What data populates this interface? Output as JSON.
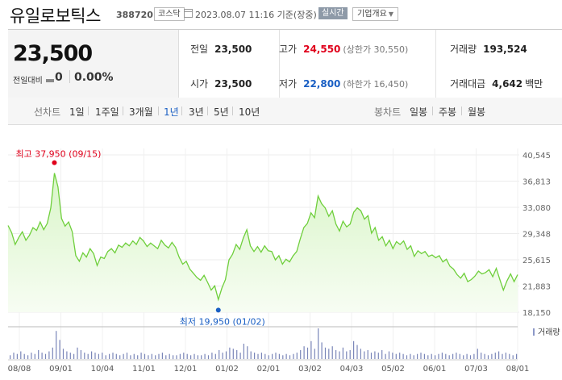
{
  "header": {
    "title": "유일로보틱스",
    "code": "388720",
    "market": "코스닥",
    "date": "2023.08.07 11:16 기준(장중)",
    "realtime": "실시간",
    "company_info": "기업개요"
  },
  "quote": {
    "price": "23,500",
    "change_label": "전일대비",
    "change": "0",
    "change_pct": "0.00%",
    "prev_close": {
      "label": "전일",
      "value": "23,500"
    },
    "high": {
      "label": "고가",
      "value": "24,550",
      "limit_label": "(상한가 30,550)"
    },
    "volume": {
      "label": "거래량",
      "value": "193,524"
    },
    "open": {
      "label": "시가",
      "value": "23,500"
    },
    "low": {
      "label": "저가",
      "value": "22,800",
      "limit_label": "(하한가 16,450)"
    },
    "amount": {
      "label": "거래대금",
      "value": "4,642",
      "unit": "백만"
    }
  },
  "chart_tabs": {
    "line_label": "선차트",
    "line_items": [
      "1일",
      "1주일",
      "3개월",
      "1년",
      "3년",
      "5년",
      "10년"
    ],
    "active": "1년",
    "candle_label": "봉차트",
    "candle_items": [
      "일봉",
      "주봉",
      "월봉"
    ]
  },
  "colors": {
    "up": "#e0001b",
    "down": "#1a5fc4",
    "line": "#6fcf3c",
    "fill_top": "#d9f5c8"
  },
  "chart_data": {
    "type": "area",
    "x_tick_labels": [
      "08/08",
      "09/01",
      "10/04",
      "11/01",
      "12/01",
      "01/02",
      "02/01",
      "03/02",
      "04/03",
      "05/02",
      "06/01",
      "07/03",
      "08/01"
    ],
    "y_tick_labels": [
      "40,545",
      "36,813",
      "33,080",
      "29,348",
      "25,615",
      "21,883",
      "18,150"
    ],
    "ylim": [
      18150,
      40545
    ],
    "max_label": "최고 37,950 (09/15)",
    "min_label": "최저 19,950 (01/02)",
    "volume_label": "거래량",
    "price_values": [
      30500,
      29500,
      27800,
      28800,
      29600,
      28400,
      29100,
      30200,
      29800,
      31000,
      29900,
      30800,
      33000,
      37950,
      36000,
      31500,
      30400,
      31000,
      29600,
      26200,
      25400,
      26600,
      26000,
      27200,
      26500,
      24800,
      26000,
      25800,
      26800,
      27200,
      26600,
      27700,
      27400,
      28000,
      27600,
      28300,
      27800,
      28800,
      28300,
      27500,
      28000,
      27600,
      27200,
      28400,
      27700,
      27300,
      28100,
      27400,
      26000,
      25000,
      25400,
      24300,
      23700,
      23100,
      22700,
      23400,
      22400,
      21300,
      21900,
      19950,
      21600,
      22800,
      25600,
      26400,
      27800,
      27100,
      28700,
      29900,
      27600,
      26800,
      27500,
      26700,
      27600,
      26900,
      26800,
      25600,
      26200,
      25000,
      25700,
      25300,
      26200,
      26800,
      28600,
      30200,
      30800,
      32300,
      31600,
      34700,
      33600,
      33000,
      31800,
      32600,
      30700,
      29700,
      31100,
      30300,
      30700,
      32400,
      33000,
      32600,
      31400,
      31900,
      29400,
      30200,
      28400,
      28900,
      27600,
      28400,
      27200,
      28200,
      27800,
      28300,
      27100,
      27600,
      26100,
      26900,
      26500,
      26800,
      26100,
      26300,
      25900,
      26200,
      25300,
      25700,
      24700,
      24300,
      23500,
      23000,
      23700,
      22500,
      22800,
      23300,
      24000,
      23600,
      23800,
      24200,
      23200,
      24400,
      22800,
      21300,
      22600,
      23600,
      22500,
      23500
    ],
    "volume_values": [
      3,
      5,
      4,
      6,
      4,
      3,
      5,
      4,
      7,
      5,
      4,
      6,
      9,
      22,
      15,
      8,
      6,
      5,
      4,
      9,
      7,
      5,
      4,
      6,
      5,
      4,
      5,
      3,
      4,
      5,
      4,
      3,
      4,
      5,
      3,
      4,
      3,
      5,
      4,
      3,
      4,
      3,
      4,
      5,
      3,
      4,
      3,
      3,
      4,
      5,
      4,
      3,
      4,
      3,
      3,
      4,
      3,
      5,
      4,
      7,
      5,
      6,
      9,
      8,
      7,
      5,
      12,
      10,
      6,
      5,
      4,
      5,
      4,
      3,
      4,
      5,
      4,
      3,
      4,
      3,
      4,
      5,
      7,
      10,
      9,
      14,
      8,
      24,
      13,
      9,
      8,
      10,
      7,
      6,
      9,
      6,
      7,
      14,
      11,
      8,
      6,
      7,
      5,
      6,
      5,
      7,
      4,
      6,
      5,
      4,
      5,
      4,
      3,
      4,
      3,
      4,
      5,
      4,
      3,
      4,
      3,
      4,
      5,
      4,
      3,
      4,
      5,
      4,
      3,
      4,
      3,
      4,
      8,
      5,
      4,
      3,
      4,
      5,
      6,
      4,
      5,
      4,
      3,
      4
    ]
  }
}
